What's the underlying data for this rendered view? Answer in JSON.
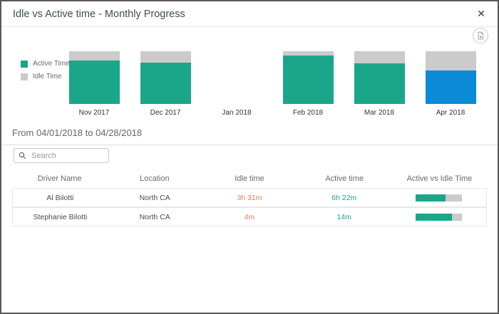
{
  "modal": {
    "title": "Idle vs Active time - Monthly Progress",
    "close_glyph": "✕"
  },
  "icons": {
    "close": "close-icon",
    "export": "export-report-icon",
    "search": "magnifier-icon"
  },
  "chart_data": {
    "type": "bar",
    "stacked": true,
    "title": "Idle vs Active time - Monthly Progress",
    "categories": [
      "Nov 2017",
      "Dec 2017",
      "Jan 2018",
      "Feb 2018",
      "Mar 2018",
      "Apr 2018"
    ],
    "series": [
      {
        "name": "Active Time",
        "color": "#1aa689",
        "values_pct": [
          82,
          79,
          0,
          92,
          77,
          63
        ]
      },
      {
        "name": "Idle Time",
        "color": "#cbcbcb",
        "values_pct": [
          18,
          21,
          0,
          8,
          23,
          37
        ]
      }
    ],
    "highlighted_category": "Apr 2018",
    "highlight_color": "#0b8ad8",
    "legend_position": "left",
    "ylim": [
      0,
      100
    ],
    "grid": false
  },
  "period": {
    "label": "From 04/01/2018 to 04/28/2018"
  },
  "search": {
    "placeholder": "Search",
    "value": ""
  },
  "table": {
    "columns": [
      "Driver Name",
      "Location",
      "Idle time",
      "Active time",
      "Active vs Idle Time"
    ],
    "rows": [
      {
        "driver": "Al Bilotti",
        "location": "North CA",
        "idle": "3h 31m",
        "active": "6h 22m",
        "active_pct": 64
      },
      {
        "driver": "Stephanie Bilotti",
        "location": "North CA",
        "idle": "4m",
        "active": "14m",
        "active_pct": 78
      }
    ]
  },
  "colors": {
    "active": "#1aa689",
    "idle": "#cbcbcb",
    "selected_month": "#0b8ad8",
    "idle_text": "#e08157",
    "active_text": "#1aa689",
    "title_text": "#3e4c59"
  }
}
